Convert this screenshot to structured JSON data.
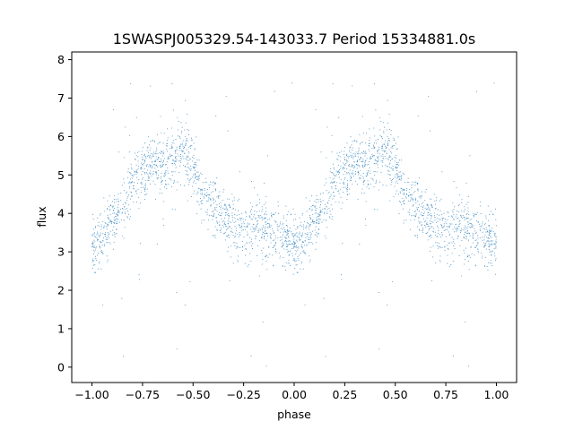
{
  "chart_data": {
    "type": "scatter",
    "title": "1SWASPJ005329.54-143033.7 Period 15334881.0s",
    "xlabel": "phase",
    "ylabel": "flux",
    "xlim": [
      -1.1,
      1.1
    ],
    "ylim": [
      -0.4,
      8.2
    ],
    "xticks": [
      -1.0,
      -0.75,
      -0.5,
      -0.25,
      0.0,
      0.25,
      0.5,
      0.75,
      1.0
    ],
    "xtick_labels": [
      "−1.00",
      "−0.75",
      "−0.50",
      "−0.25",
      "0.00",
      "0.25",
      "0.50",
      "0.75",
      "1.00"
    ],
    "yticks": [
      0,
      1,
      2,
      3,
      4,
      5,
      6,
      7,
      8
    ],
    "ytick_labels": [
      "0",
      "1",
      "2",
      "3",
      "4",
      "5",
      "6",
      "7",
      "8"
    ],
    "grid": false,
    "marker_color": "#1f77b4",
    "series": [
      {
        "phase_curve": [
          {
            "x": 0.0,
            "y": 3.2
          },
          {
            "x": 0.05,
            "y": 3.4
          },
          {
            "x": 0.1,
            "y": 3.7
          },
          {
            "x": 0.15,
            "y": 4.1
          },
          {
            "x": 0.2,
            "y": 4.9
          },
          {
            "x": 0.25,
            "y": 5.0
          },
          {
            "x": 0.3,
            "y": 5.2
          },
          {
            "x": 0.35,
            "y": 5.3
          },
          {
            "x": 0.4,
            "y": 5.4
          },
          {
            "x": 0.45,
            "y": 5.7
          },
          {
            "x": 0.5,
            "y": 5.3
          },
          {
            "x": 0.55,
            "y": 4.4
          },
          {
            "x": 0.6,
            "y": 4.2
          },
          {
            "x": 0.65,
            "y": 3.9
          },
          {
            "x": 0.7,
            "y": 3.7
          },
          {
            "x": 0.75,
            "y": 3.6
          },
          {
            "x": 0.8,
            "y": 3.7
          },
          {
            "x": 0.85,
            "y": 3.6
          },
          {
            "x": 0.9,
            "y": 3.4
          },
          {
            "x": 0.95,
            "y": 3.3
          },
          {
            "x": 1.0,
            "y": 3.2
          }
        ]
      }
    ]
  }
}
